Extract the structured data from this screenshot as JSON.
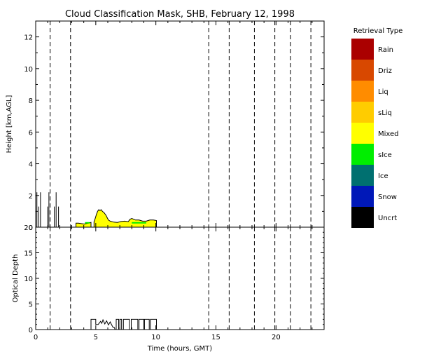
{
  "chart_data": {
    "type": "area",
    "title": "Cloud Classification Mask, SHB, February 12, 1998",
    "xlabel": "Time (hours, GMT)",
    "x_ticks": [
      0,
      5,
      10,
      15,
      20
    ],
    "xlim": [
      0,
      24
    ],
    "panels": [
      {
        "name": "mask",
        "ylabel": "Height [km,AGL]",
        "ylim": [
          0,
          13
        ],
        "y_ticks": [
          0,
          2,
          4,
          6,
          8,
          10,
          12
        ],
        "cloud_top_km": [
          [
            4.85,
            0.35
          ],
          [
            4.95,
            0.55
          ],
          [
            5.05,
            0.8
          ],
          [
            5.15,
            1.0
          ],
          [
            5.25,
            1.1
          ],
          [
            5.35,
            1.05
          ],
          [
            5.45,
            1.1
          ],
          [
            5.55,
            1.0
          ],
          [
            5.7,
            0.9
          ],
          [
            5.85,
            0.75
          ],
          [
            5.95,
            0.6
          ],
          [
            6.05,
            0.45
          ],
          [
            6.2,
            0.38
          ],
          [
            6.5,
            0.32
          ],
          [
            6.8,
            0.3
          ],
          [
            7.1,
            0.36
          ],
          [
            7.4,
            0.38
          ],
          [
            7.7,
            0.35
          ],
          [
            7.85,
            0.5
          ],
          [
            8.0,
            0.55
          ],
          [
            8.3,
            0.45
          ],
          [
            8.6,
            0.45
          ],
          [
            8.9,
            0.38
          ],
          [
            9.2,
            0.38
          ],
          [
            9.5,
            0.45
          ],
          [
            9.8,
            0.45
          ],
          [
            10.05,
            0.42
          ]
        ],
        "small_cloud_top_km": [
          [
            3.35,
            0.25
          ],
          [
            3.55,
            0.25
          ],
          [
            4.05,
            0.2
          ],
          [
            4.35,
            0.25
          ],
          [
            4.6,
            0.3
          ]
        ],
        "sice_segments": [
          [
            4.1,
            4.5
          ],
          [
            8.0,
            9.2
          ]
        ],
        "spike_hours": [
          0.1,
          0.25,
          0.4,
          1.0,
          1.1,
          1.55,
          1.7,
          1.9
        ]
      },
      {
        "name": "optical-depth",
        "ylabel": "Optical Depth",
        "ylim": [
          0,
          20
        ],
        "y_ticks": [
          0,
          5,
          10,
          15,
          20
        ],
        "series": [
          [
            4.6,
            0
          ],
          [
            4.6,
            2
          ],
          [
            5.0,
            2
          ],
          [
            5.0,
            1
          ],
          [
            5.2,
            1
          ],
          [
            5.4,
            1.6
          ],
          [
            5.5,
            1.2
          ],
          [
            5.6,
            1.9
          ],
          [
            5.75,
            1.1
          ],
          [
            5.9,
            1.7
          ],
          [
            6.05,
            0.9
          ],
          [
            6.2,
            1.5
          ],
          [
            6.35,
            0.8
          ],
          [
            6.45,
            0.4
          ],
          [
            6.55,
            0.4
          ],
          [
            6.6,
            0
          ],
          [
            6.7,
            0
          ],
          [
            6.7,
            2
          ],
          [
            6.9,
            2
          ],
          [
            6.9,
            0
          ],
          [
            7.0,
            0
          ],
          [
            7.0,
            2
          ],
          [
            7.15,
            2
          ],
          [
            7.15,
            0
          ],
          [
            7.3,
            0
          ],
          [
            7.3,
            2
          ],
          [
            7.8,
            2
          ],
          [
            7.8,
            0
          ],
          [
            7.95,
            0
          ],
          [
            7.95,
            2
          ],
          [
            8.5,
            2
          ],
          [
            8.5,
            0
          ],
          [
            8.6,
            0
          ],
          [
            8.6,
            2
          ],
          [
            9.0,
            2
          ],
          [
            9.0,
            0
          ],
          [
            9.05,
            0
          ],
          [
            9.05,
            2
          ],
          [
            9.45,
            2
          ],
          [
            9.45,
            0
          ],
          [
            9.55,
            0
          ],
          [
            9.55,
            2
          ],
          [
            10.05,
            2
          ],
          [
            10.05,
            0
          ]
        ]
      }
    ],
    "dashed_vlines": [
      1.2,
      2.9,
      14.4,
      16.1,
      18.2,
      19.9,
      21.2,
      22.9
    ],
    "legend": {
      "title": "Retrieval Type",
      "placement": "right",
      "items": [
        {
          "label": "Rain",
          "color": "#aa0000"
        },
        {
          "label": "Driz",
          "color": "#d84800"
        },
        {
          "label": "Liq",
          "color": "#ff8c00"
        },
        {
          "label": "sLiq",
          "color": "#ffcc00"
        },
        {
          "label": "Mixed",
          "color": "#ffff00"
        },
        {
          "label": "sIce",
          "color": "#00ee00"
        },
        {
          "label": "Ice",
          "color": "#007070"
        },
        {
          "label": "Snow",
          "color": "#0018b8"
        },
        {
          "label": "Uncrt",
          "color": "#000000"
        }
      ]
    }
  }
}
